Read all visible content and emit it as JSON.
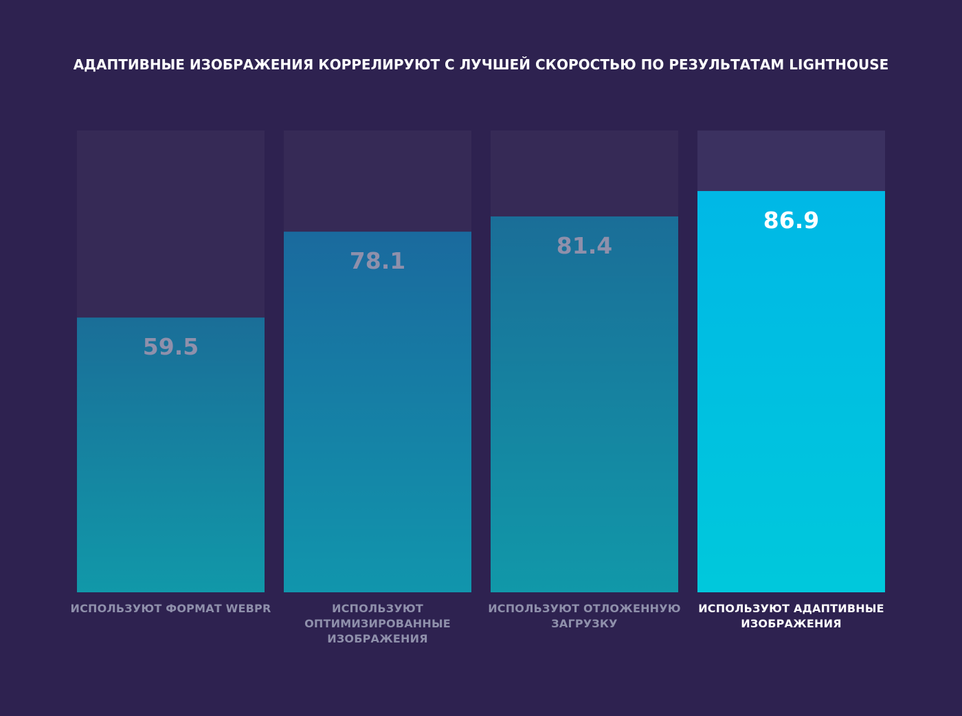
{
  "chart_data": {
    "type": "bar",
    "title": "АДАПТИВНЫЕ ИЗОБРАЖЕНИЯ КОРРЕЛИРУЮТ С ЛУЧШЕЙ СКОРОСТЬЮ ПО РЕЗУЛЬТАТАМ LIGHTHOUSE",
    "categories": [
      "ИСПОЛЬЗУЮТ ФОРМАТ WEBPR",
      "ИСПОЛЬЗУЮТ ОПТИМИЗИРОВАННЫЕ ИЗОБРАЖЕНИЯ",
      "ИСПОЛЬЗУЮТ ОТЛОЖЕННУЮ ЗАГРУЗКУ",
      "ИСПОЛЬЗУЮТ АДАПТИВНЫЕ ИЗОБРАЖЕНИЯ"
    ],
    "values": [
      59.5,
      78.1,
      81.4,
      86.9
    ],
    "colors": [
      "#1a6e98",
      "#1a6a9e",
      "#1a6e98",
      "#00b8e6"
    ],
    "label_colors": [
      "#8f90ab",
      "#8f90ab",
      "#8f90ab",
      "#ffffff"
    ],
    "ylim": [
      0,
      100
    ]
  }
}
